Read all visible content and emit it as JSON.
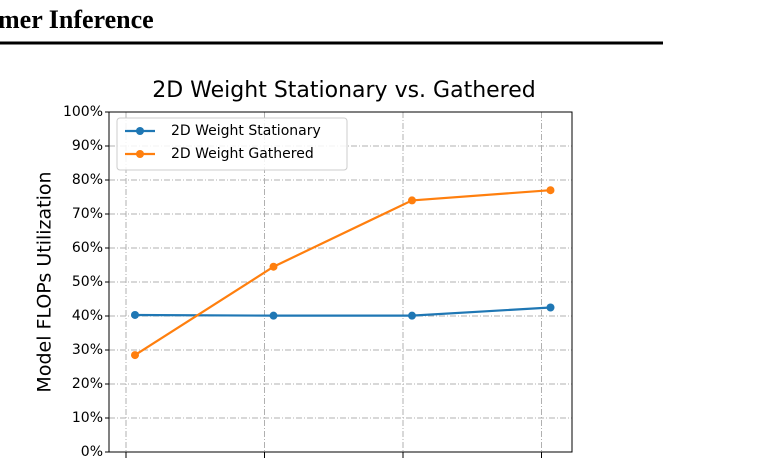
{
  "header": {
    "title": "mer Inference"
  },
  "chart_data": {
    "type": "line",
    "title": "2D Weight Stationary vs. Gathered",
    "y_label": "Model FLOPs Utilization",
    "categories": [
      null,
      null,
      null,
      null
    ],
    "series": [
      {
        "name": "2D Weight Stationary",
        "color": "#1f77b4",
        "values": [
          40.3,
          40.1,
          40.1,
          42.5
        ]
      },
      {
        "name": "2D Weight Gathered",
        "color": "#ff7f0e",
        "values": [
          28.5,
          54.5,
          74,
          77
        ]
      }
    ],
    "ylim": [
      0,
      100
    ],
    "yticks": [
      {
        "value": 0,
        "label": "0%"
      },
      {
        "value": 10,
        "label": "10%"
      },
      {
        "value": 20,
        "label": "20%"
      },
      {
        "value": 30,
        "label": "30%"
      },
      {
        "value": 40,
        "label": "40%"
      },
      {
        "value": 50,
        "label": "50%"
      },
      {
        "value": 60,
        "label": "60%"
      },
      {
        "value": 70,
        "label": "70%"
      },
      {
        "value": 80,
        "label": "80%"
      },
      {
        "value": 90,
        "label": "90%"
      },
      {
        "value": 100,
        "label": "100%"
      }
    ],
    "grid": true,
    "legend": "upper-left"
  }
}
